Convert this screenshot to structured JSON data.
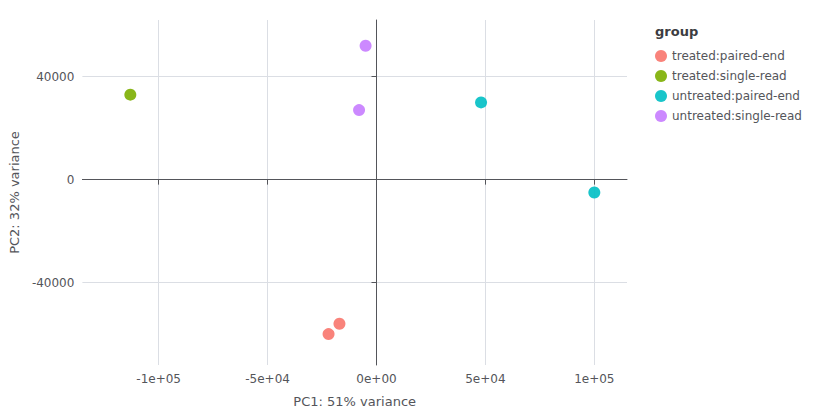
{
  "chart_data": {
    "type": "scatter",
    "title": "",
    "xlabel": "PC1: 51% variance",
    "ylabel": "PC2: 32% variance",
    "legend_title": "group",
    "legend": "upper right",
    "grid": true,
    "series": [
      {
        "name": "treated:paired-end",
        "color": "#F8766D",
        "x": [
          -17000,
          -22000
        ],
        "values": [
          -56000,
          -60000
        ]
      },
      {
        "name": "treated:single-read",
        "color": "#7CAE00",
        "x": [
          -113000
        ],
        "values": [
          33000
        ]
      },
      {
        "name": "untreated:paired-end",
        "color": "#00BFC4",
        "x": [
          48000,
          100000
        ],
        "values": [
          30000,
          -5000
        ]
      },
      {
        "name": "untreated:single-read",
        "color": "#C77CFF",
        "x": [
          -5000,
          -8000
        ],
        "values": [
          52000,
          27000
        ]
      }
    ],
    "xlim": [
      -135000,
      115000
    ],
    "ylim": [
      -72000,
      62000
    ],
    "xticks": [
      {
        "value": -100000,
        "label": "-1e+05"
      },
      {
        "value": -50000,
        "label": "-5e+04"
      },
      {
        "value": 0,
        "label": "0e+00"
      },
      {
        "value": 50000,
        "label": "5e+04"
      },
      {
        "value": 100000,
        "label": "1e+05"
      }
    ],
    "yticks": [
      -40000,
      0,
      40000
    ]
  }
}
